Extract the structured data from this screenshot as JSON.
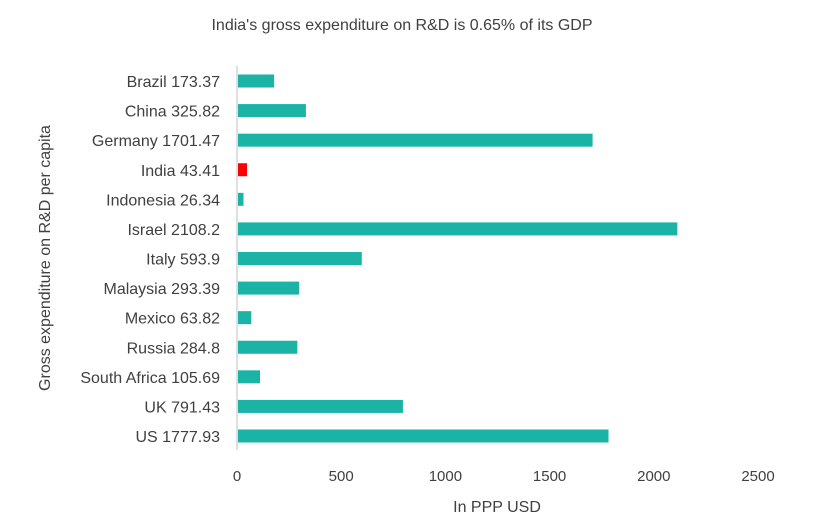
{
  "chart_data": {
    "type": "bar",
    "orientation": "horizontal",
    "title": "India's gross expenditure on R&D is 0.65% of its GDP",
    "xlabel": "In PPP USD",
    "ylabel": "Gross expenditure on R&D per capita",
    "xlim": [
      0,
      2500
    ],
    "xticks": [
      0,
      500,
      1000,
      1500,
      2000,
      2500
    ],
    "categories": [
      "Brazil 173.37",
      "China 325.82",
      "Germany 1701.47",
      "India 43.41",
      "Indonesia 26.34",
      "Israel 2108.2",
      "Italy 593.9",
      "Malaysia 293.39",
      "Mexico 63.82",
      "Russia 284.8",
      "South Africa 105.69",
      "UK 791.43",
      "US 1777.93"
    ],
    "values": [
      173.37,
      325.82,
      1701.47,
      43.41,
      26.34,
      2108.2,
      593.9,
      293.39,
      63.82,
      284.8,
      105.69,
      791.43,
      1777.93
    ],
    "colors": {
      "default": "#1ab3a6",
      "highlight": "#ff0000",
      "highlight_category": "India 43.41",
      "axis": "#bfbfbf",
      "text": "#404040"
    },
    "grid": false,
    "legend": "none"
  }
}
